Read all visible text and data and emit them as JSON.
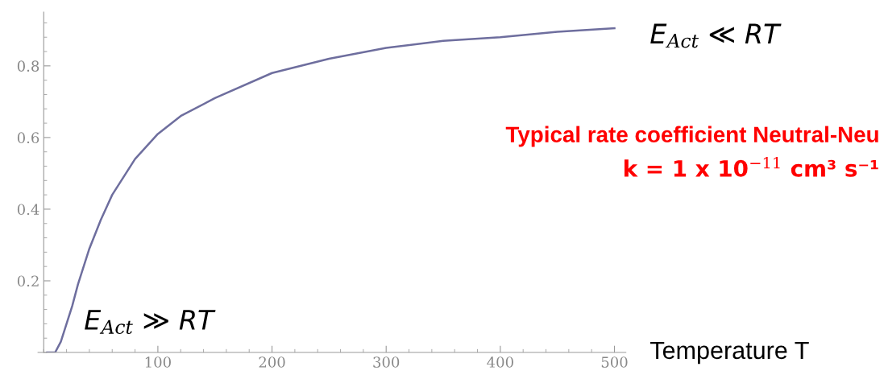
{
  "chart_data": {
    "type": "line",
    "xlabel": "Temperature T",
    "x": [
      3,
      10,
      15,
      20,
      25,
      30,
      40,
      50,
      60,
      70,
      80,
      100,
      120,
      150,
      200,
      250,
      300,
      350,
      400,
      450,
      500
    ],
    "series": [
      {
        "color": "#6e6e9e",
        "values": [
          0,
          0.0,
          0.03,
          0.08,
          0.13,
          0.19,
          0.29,
          0.37,
          0.44,
          0.49,
          0.54,
          0.61,
          0.66,
          0.71,
          0.78,
          0.82,
          0.85,
          0.87,
          0.88,
          0.895,
          0.905
        ]
      }
    ],
    "xlim": [
      -5,
      510
    ],
    "ylim": [
      0,
      0.95
    ],
    "xticks": [
      100,
      200,
      300,
      400,
      500
    ],
    "yticks": [
      0.2,
      0.4,
      0.6,
      0.8
    ],
    "grid": false,
    "legend": false,
    "marker": "none",
    "line_style": "solid",
    "annotations": [
      "E$_{Act}$ ≪ RT",
      "E$_{Act}$ ≫ RT",
      "Typical rate coefficient Neutral-Neu",
      "k = 1 x 10$^{−11}$ cm³ s⁻¹"
    ]
  }
}
